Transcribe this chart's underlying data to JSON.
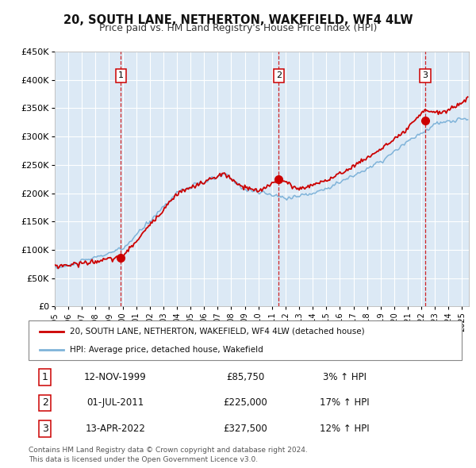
{
  "title": "20, SOUTH LANE, NETHERTON, WAKEFIELD, WF4 4LW",
  "subtitle": "Price paid vs. HM Land Registry's House Price Index (HPI)",
  "background_color": "#ffffff",
  "chart_bg_color": "#dce9f5",
  "grid_color": "#ffffff",
  "ylim": [
    0,
    450000
  ],
  "yticks": [
    0,
    50000,
    100000,
    150000,
    200000,
    250000,
    300000,
    350000,
    400000,
    450000
  ],
  "ytick_labels": [
    "£0",
    "£50K",
    "£100K",
    "£150K",
    "£200K",
    "£250K",
    "£300K",
    "£350K",
    "£400K",
    "£450K"
  ],
  "sale_color": "#cc0000",
  "hpi_color": "#7fb3d9",
  "purchase_xvals": [
    1999.87,
    2011.5,
    2022.28
  ],
  "purchase_yvals": [
    85750,
    225000,
    327500
  ],
  "purchase_labels": [
    "1",
    "2",
    "3"
  ],
  "purchase_dates_str": [
    "12-NOV-1999",
    "01-JUL-2011",
    "13-APR-2022"
  ],
  "purchase_prices_str": [
    "£85,750",
    "£225,000",
    "£327,500"
  ],
  "purchase_hpi_str": [
    "3% ↑ HPI",
    "17% ↑ HPI",
    "12% ↑ HPI"
  ],
  "legend_line1": "20, SOUTH LANE, NETHERTON, WAKEFIELD, WF4 4LW (detached house)",
  "legend_line2": "HPI: Average price, detached house, Wakefield",
  "footnote1": "Contains HM Land Registry data © Crown copyright and database right 2024.",
  "footnote2": "This data is licensed under the Open Government Licence v3.0.",
  "xmin": 1995.0,
  "xmax": 2025.5
}
